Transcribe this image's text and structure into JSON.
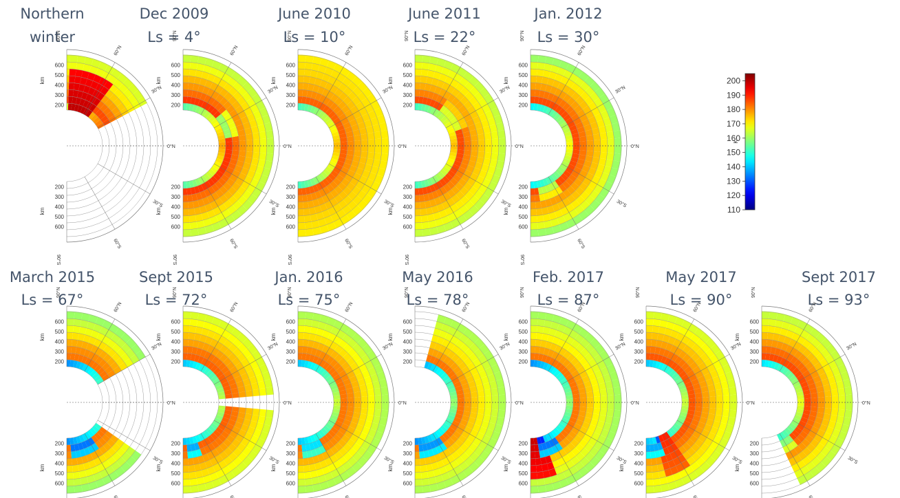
{
  "chart_data": {
    "type": "heatmap",
    "description_units": {
      "radial_axis_label": "km",
      "radial_ticks": [
        200,
        300,
        400,
        500,
        600
      ],
      "upper_ticks_shown": [
        200,
        300,
        400,
        500,
        600
      ],
      "lower_ticks_shown": [
        200,
        300,
        400,
        500,
        600
      ],
      "latitude_labels": [
        "90°N",
        "60°N",
        "30°N",
        "0°N",
        "30°S",
        "60°S",
        "90°S"
      ]
    },
    "colorbar": {
      "label": "K",
      "range": [
        110,
        205
      ],
      "ticks": [
        110,
        120,
        130,
        140,
        150,
        160,
        170,
        180,
        190,
        200
      ]
    },
    "panels": [
      {
        "title": "Northern winter",
        "line1": "Northern",
        "line2": "winter",
        "coverage": [
          [
            28,
            90
          ]
        ],
        "rings": [
          191,
          186,
          182,
          178,
          174,
          171,
          168,
          166
        ],
        "hot": [
          55,
          88,
          199
        ],
        "cold": []
      },
      {
        "title": "Dec 2009 Ls = 4°",
        "line1": "Dec 2009",
        "line2": "Ls = 4°",
        "coverage": [
          [
            -90,
            90
          ]
        ],
        "rings": [
          178,
          188,
          183,
          179,
          176,
          172,
          168,
          164
        ],
        "hot": [],
        "cold": [
          [
            10,
            40,
            152
          ]
        ]
      },
      {
        "title": "June 2010 Ls = 10°",
        "line1": "June 2010",
        "line2": "Ls = 10°",
        "coverage": [
          [
            -90,
            90
          ]
        ],
        "rings": [
          176,
          184,
          180,
          177,
          175,
          173,
          172,
          171
        ],
        "hot": [],
        "cold": []
      },
      {
        "title": "June 2011 Ls = 22°",
        "line1": "June 2011",
        "line2": "Ls = 22°",
        "coverage": [
          [
            -90,
            90
          ]
        ],
        "rings": [
          176,
          186,
          181,
          177,
          174,
          171,
          168,
          164
        ],
        "hot": [],
        "cold": [
          [
            20,
            55,
            158
          ]
        ]
      },
      {
        "title": "Jan. 2012 Ls = 30°",
        "line1": "Jan. 2012",
        "line2": "Ls = 30°",
        "coverage": [
          [
            -90,
            90
          ]
        ],
        "rings": [
          170,
          186,
          182,
          178,
          175,
          171,
          167,
          160
        ],
        "hot": [],
        "cold": [
          [
            -80,
            -55,
            155
          ]
        ]
      },
      {
        "title": "March 2015 Ls = 67°",
        "line1": "March 2015",
        "line2": "Ls = 67°",
        "coverage": [
          [
            -90,
            -35
          ],
          [
            30,
            90
          ]
        ],
        "rings": [
          160,
          182,
          180,
          177,
          172,
          168,
          164,
          160
        ],
        "hot": [],
        "cold": [
          [
            -85,
            -55,
            125
          ]
        ]
      },
      {
        "title": "Sept 2015 Ls = 72°",
        "line1": "Sept 2015",
        "line2": "Ls = 72°",
        "coverage": [
          [
            -90,
            -5
          ],
          [
            5,
            90
          ]
        ],
        "rings": [
          165,
          184,
          182,
          178,
          175,
          172,
          169,
          166
        ],
        "hot": [],
        "cold": [
          [
            -85,
            -70,
            130
          ]
        ]
      },
      {
        "title": "Jan. 2016 Ls = 75°",
        "line1": "Jan. 2016",
        "line2": "Ls = 75°",
        "coverage": [
          [
            -90,
            30
          ],
          [
            30,
            90
          ]
        ],
        "rings": [
          165,
          182,
          180,
          176,
          172,
          169,
          165,
          162
        ],
        "hot": [],
        "cold": [
          [
            -85,
            -60,
            135
          ]
        ]
      },
      {
        "title": "May 2016 Ls = 78°",
        "line1": "May 2016",
        "line2": "Ls = 78°",
        "coverage": [
          [
            -90,
            75
          ]
        ],
        "rings": [
          160,
          182,
          178,
          174,
          171,
          168,
          165,
          162
        ],
        "hot": [],
        "cold": [
          [
            -85,
            -55,
            128
          ]
        ]
      },
      {
        "title": "Feb. 2017 Ls = 87°",
        "line1": "Feb. 2017",
        "line2": "Ls = 87°",
        "coverage": [
          [
            -90,
            90
          ]
        ],
        "rings": [
          160,
          182,
          178,
          174,
          170,
          167,
          164,
          161
        ],
        "hot": [
          -88,
          -70,
          198
        ],
        "cold": [
          [
            -80,
            -55,
            125
          ]
        ]
      },
      {
        "title": "May 2017 Ls = 90°",
        "line1": "May 2017",
        "line2": "Ls = 90°",
        "coverage": [
          [
            -90,
            90
          ]
        ],
        "rings": [
          165,
          185,
          182,
          178,
          175,
          172,
          169,
          166
        ],
        "hot": [
          -75,
          -55,
          190
        ],
        "cold": [
          [
            -88,
            -70,
            130
          ]
        ]
      },
      {
        "title": "Sept 2017 Ls = 93°",
        "line1": "Sept 2017",
        "line2": "Ls = 93°",
        "coverage": [
          [
            -65,
            90
          ]
        ],
        "rings": [
          168,
          186,
          183,
          179,
          175,
          171,
          167,
          164
        ],
        "hot": [],
        "cold": [
          [
            -65,
            -50,
            150
          ]
        ]
      }
    ]
  }
}
